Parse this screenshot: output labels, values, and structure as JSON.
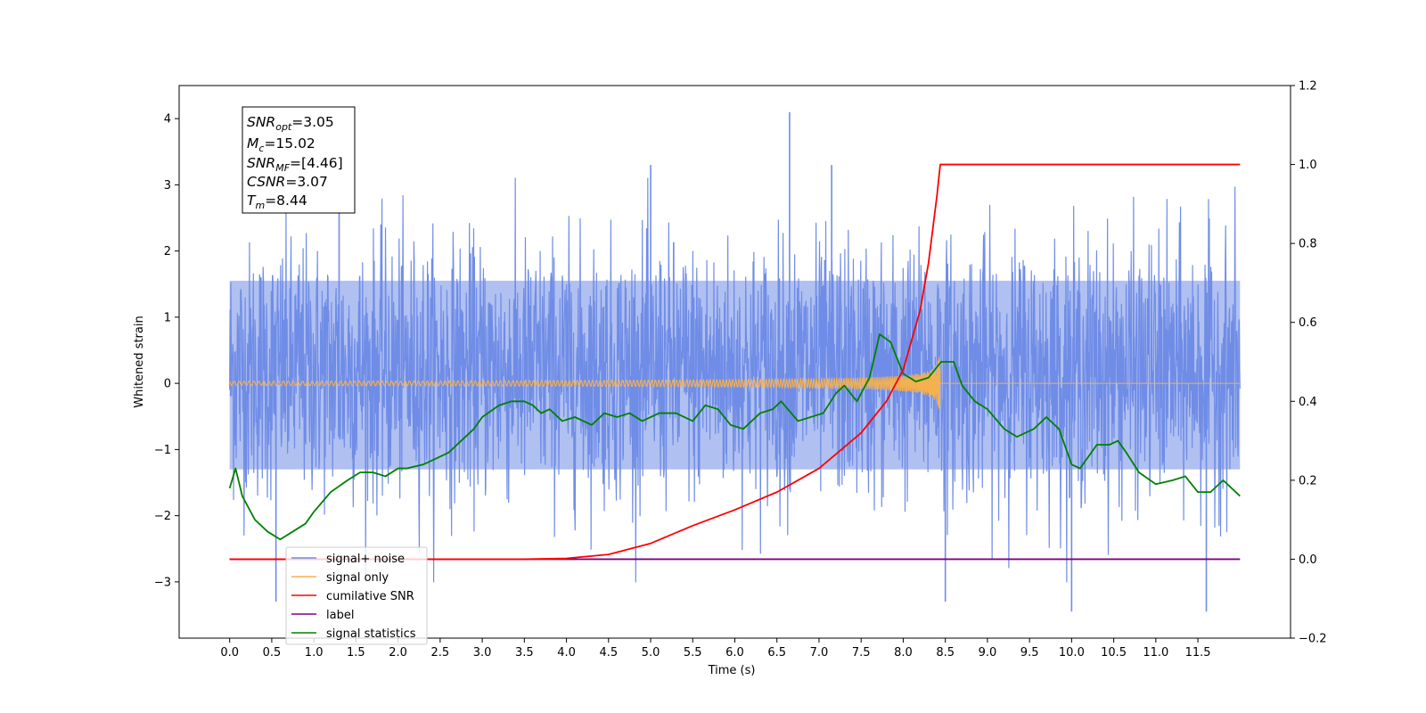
{
  "chart_data": {
    "type": "line",
    "xlabel": "Time (s)",
    "ylabel": "Whitened strain",
    "xlim": [
      -0.6,
      12.6
    ],
    "ylim": [
      -3.85,
      4.5
    ],
    "y2lim": [
      -0.2,
      1.2
    ],
    "x_ticks": [
      "0.0",
      "0.5",
      "1.0",
      "1.5",
      "2.0",
      "2.5",
      "3.0",
      "3.5",
      "4.0",
      "4.5",
      "5.0",
      "5.5",
      "6.0",
      "6.5",
      "7.0",
      "7.5",
      "8.0",
      "8.5",
      "9.0",
      "9.5",
      "10.0",
      "10.5",
      "11.0",
      "11.5"
    ],
    "y_ticks": [
      "−3",
      "−2",
      "−1",
      "0",
      "1",
      "2",
      "3",
      "4"
    ],
    "y2_ticks": [
      "−0.2",
      "0.0",
      "0.2",
      "0.4",
      "0.6",
      "0.8",
      "1.0",
      "1.2"
    ],
    "legend_position": "lower-left",
    "annotation": {
      "snr_opt": "=3.05",
      "mc": "=15.02",
      "snr_mf": "=[4.46]",
      "csnr": "=3.07",
      "tm": "=8.44"
    },
    "colors": {
      "signal_noise": "#6f8de6",
      "signal_only": "#f5b050",
      "cumulative_snr": "#ff0000",
      "label": "#800080",
      "signal_statistics": "#008000"
    },
    "series": [
      {
        "name": "signal+ noise",
        "axis": "left",
        "x_range": [
          0.0,
          12.0
        ],
        "envelope_typical": [
          -1.8,
          2.2
        ],
        "extremes": [
          [
            0.55,
            -3.3
          ],
          [
            6.65,
            4.1
          ],
          [
            8.5,
            -3.3
          ],
          [
            10.0,
            -3.45
          ],
          [
            11.6,
            -3.45
          ],
          [
            1.3,
            3.2
          ],
          [
            5.0,
            3.3
          ],
          [
            7.15,
            3.3
          ]
        ]
      },
      {
        "name": "signal only",
        "axis": "left",
        "x_range": [
          0.0,
          12.0
        ],
        "chirp_end": 8.44,
        "peak_amplitude": 0.5
      },
      {
        "name": "cumilative SNR",
        "axis": "right",
        "x": [
          0.0,
          3.5,
          4.0,
          4.5,
          5.0,
          5.5,
          6.0,
          6.5,
          7.0,
          7.5,
          7.8,
          8.0,
          8.2,
          8.3,
          8.4,
          8.44,
          12.0
        ],
        "y": [
          0.0,
          0.0,
          0.002,
          0.012,
          0.04,
          0.085,
          0.125,
          0.17,
          0.23,
          0.32,
          0.4,
          0.48,
          0.63,
          0.75,
          0.92,
          1.0,
          1.0
        ]
      },
      {
        "name": "label",
        "axis": "right",
        "x": [
          0.0,
          12.0
        ],
        "y": [
          0.0,
          0.0
        ]
      },
      {
        "name": "signal statistics",
        "axis": "right",
        "x": [
          0.0,
          0.07,
          0.15,
          0.3,
          0.45,
          0.6,
          0.75,
          0.9,
          1.0,
          1.2,
          1.4,
          1.55,
          1.7,
          1.85,
          2.0,
          2.1,
          2.3,
          2.5,
          2.6,
          2.75,
          2.9,
          3.0,
          3.2,
          3.35,
          3.5,
          3.6,
          3.7,
          3.8,
          3.95,
          4.1,
          4.3,
          4.45,
          4.6,
          4.75,
          4.9,
          5.1,
          5.3,
          5.5,
          5.65,
          5.8,
          5.95,
          6.1,
          6.3,
          6.45,
          6.55,
          6.75,
          6.9,
          7.05,
          7.2,
          7.3,
          7.45,
          7.6,
          7.72,
          7.85,
          8.0,
          8.15,
          8.3,
          8.45,
          8.6,
          8.7,
          8.85,
          9.0,
          9.2,
          9.35,
          9.55,
          9.7,
          9.85,
          10.0,
          10.1,
          10.3,
          10.45,
          10.55,
          10.65,
          10.8,
          11.0,
          11.2,
          11.35,
          11.5,
          11.65,
          11.8,
          12.0
        ],
        "y": [
          0.18,
          0.23,
          0.16,
          0.1,
          0.07,
          0.05,
          0.07,
          0.09,
          0.12,
          0.17,
          0.2,
          0.22,
          0.22,
          0.21,
          0.23,
          0.23,
          0.24,
          0.26,
          0.27,
          0.3,
          0.33,
          0.36,
          0.39,
          0.4,
          0.4,
          0.39,
          0.37,
          0.38,
          0.35,
          0.36,
          0.34,
          0.37,
          0.36,
          0.37,
          0.35,
          0.37,
          0.37,
          0.35,
          0.39,
          0.38,
          0.34,
          0.33,
          0.37,
          0.38,
          0.4,
          0.35,
          0.36,
          0.37,
          0.42,
          0.44,
          0.4,
          0.46,
          0.57,
          0.55,
          0.47,
          0.45,
          0.46,
          0.5,
          0.5,
          0.44,
          0.4,
          0.38,
          0.33,
          0.31,
          0.33,
          0.36,
          0.33,
          0.24,
          0.23,
          0.29,
          0.29,
          0.3,
          0.27,
          0.22,
          0.19,
          0.2,
          0.21,
          0.17,
          0.17,
          0.2,
          0.16
        ]
      }
    ]
  }
}
